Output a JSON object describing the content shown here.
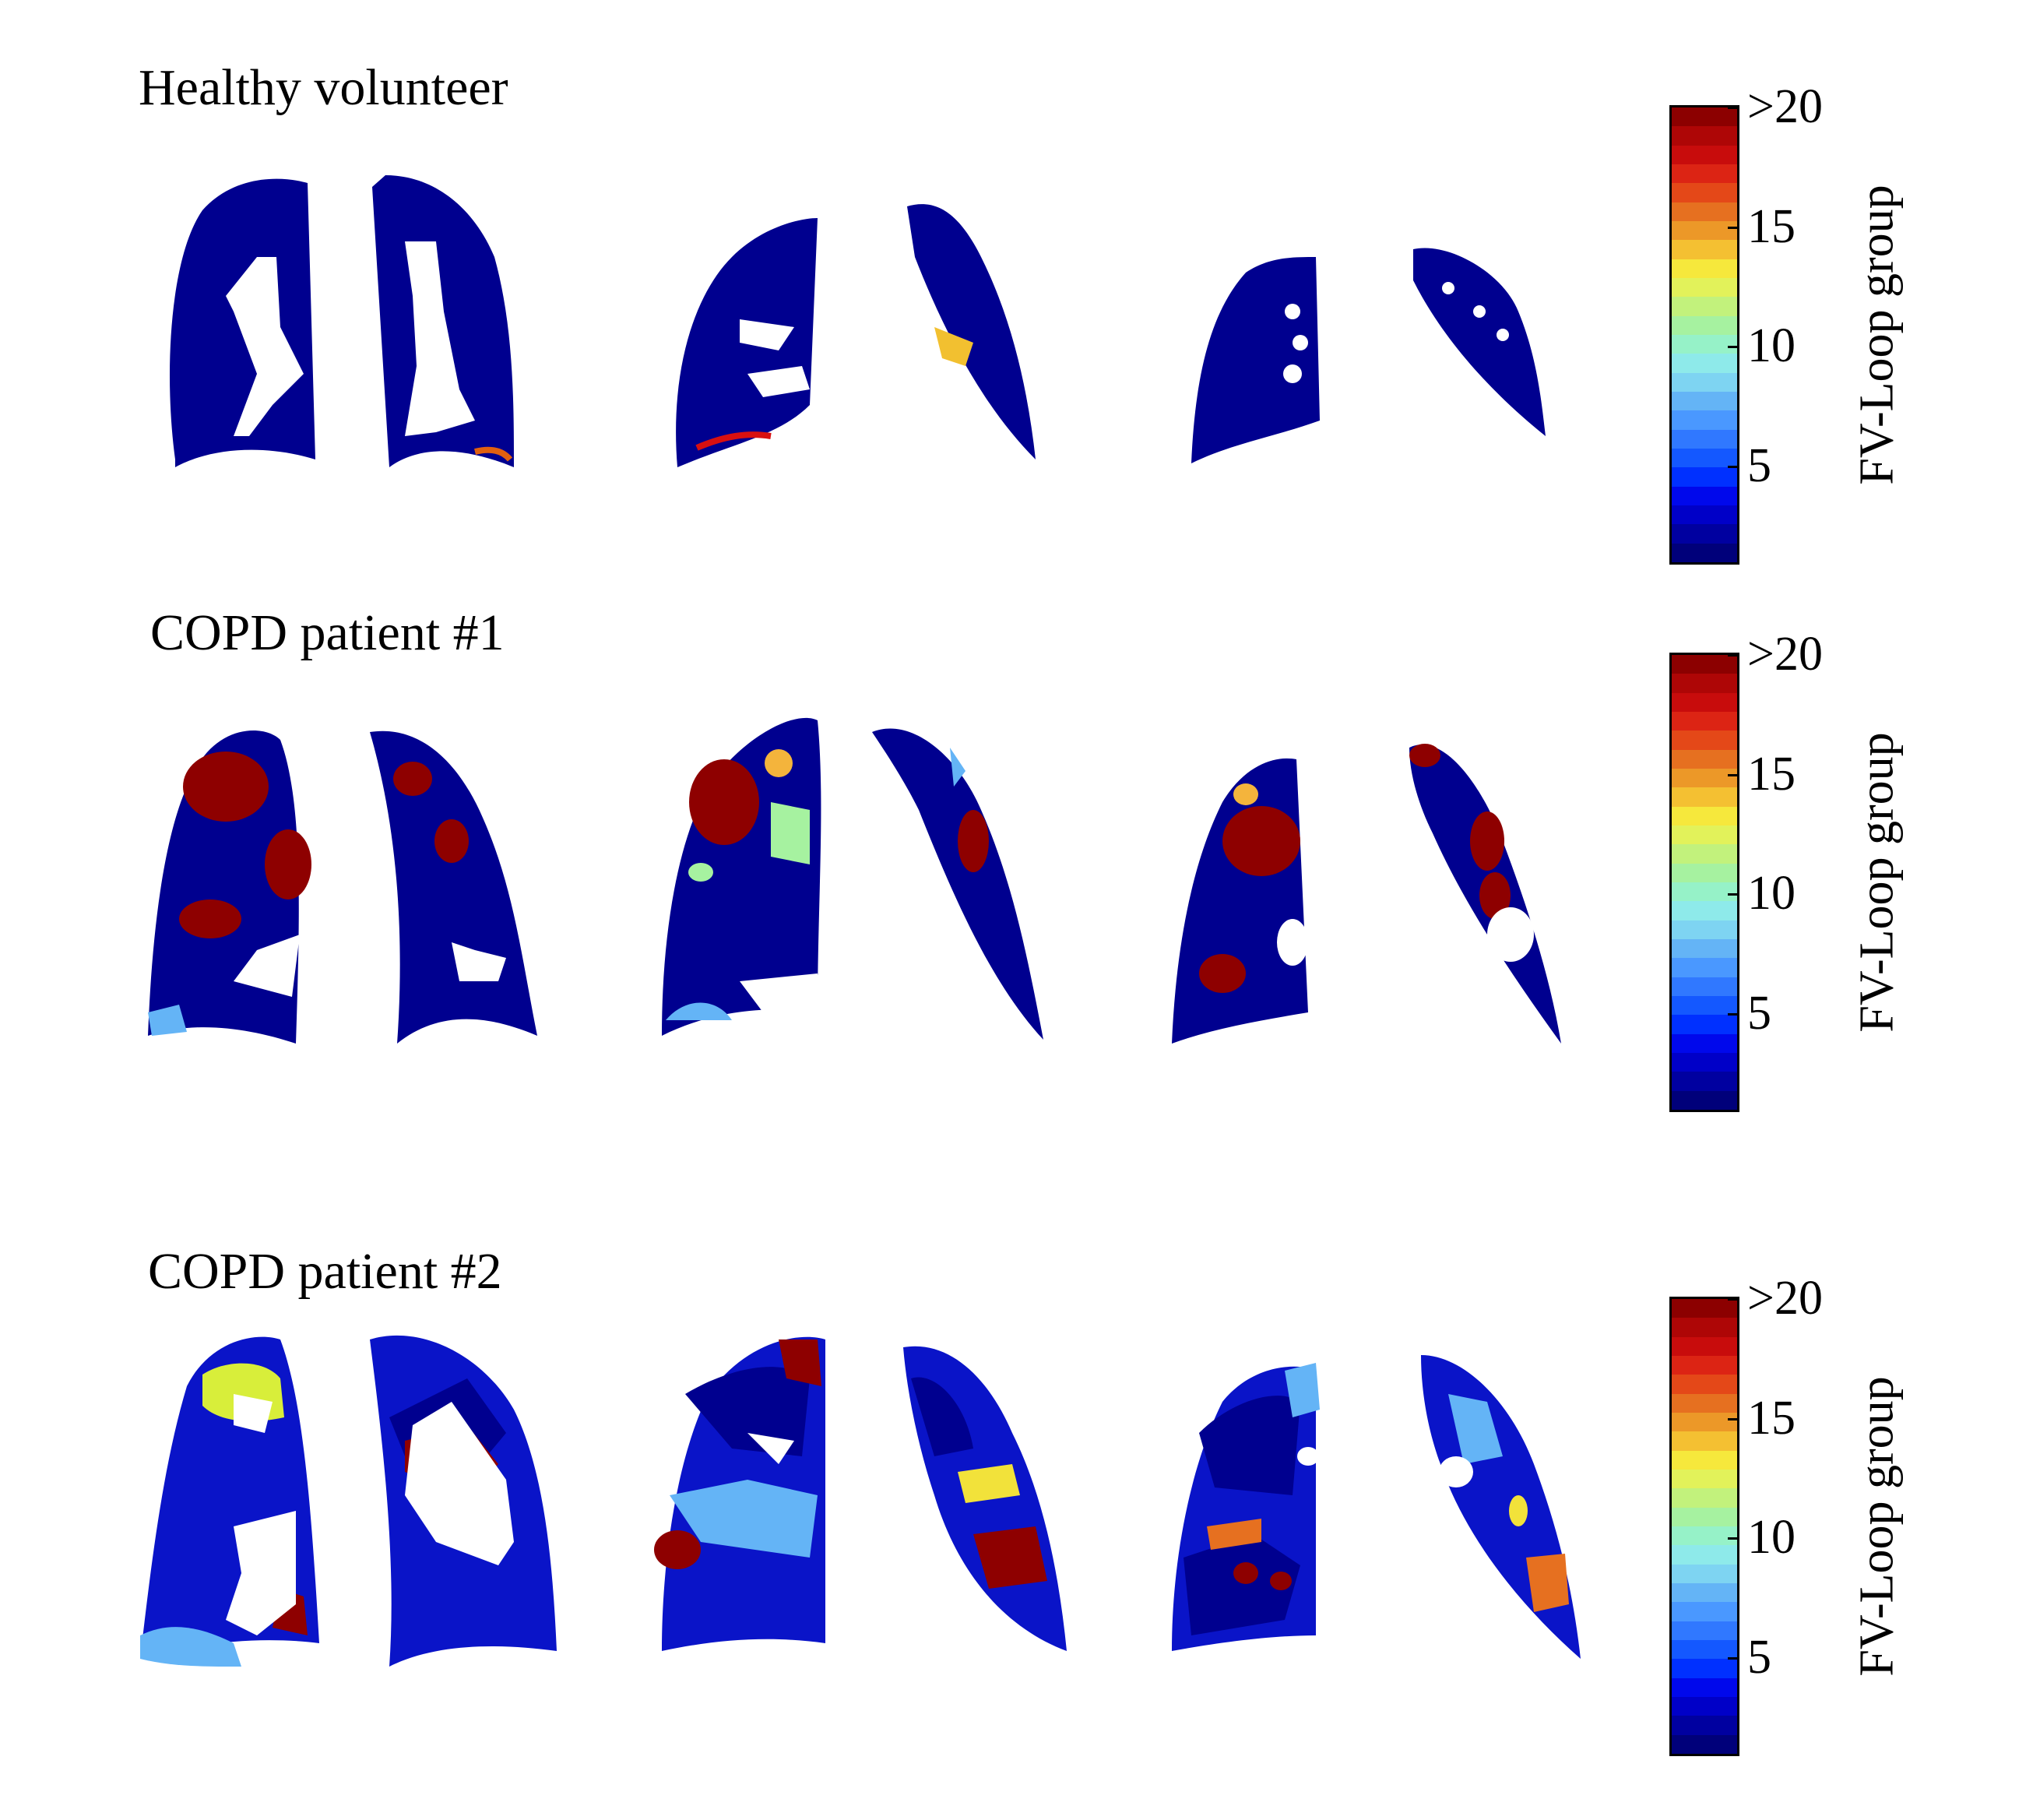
{
  "figure": {
    "panels": [
      {
        "title": "Healthy volunteer"
      },
      {
        "title": "COPD patient #1"
      },
      {
        "title": "COPD patient #2"
      }
    ],
    "colorbar": {
      "label": "FV-Loop group",
      "ticks": [
        ">20",
        "15",
        "10",
        "5"
      ],
      "tick_values": [
        20,
        15,
        10,
        5
      ],
      "range": [
        1,
        20
      ],
      "colors": [
        "#00007a",
        "#0000a0",
        "#0000c8",
        "#0008ec",
        "#0030ff",
        "#1458ff",
        "#3078ff",
        "#4a98ff",
        "#64b4f6",
        "#7ed4f2",
        "#8eeaea",
        "#96f2c8",
        "#a6f2a0",
        "#c2f27c",
        "#e2f25a",
        "#f6e83c",
        "#f4c032",
        "#ec9828",
        "#e67020",
        "#e44818",
        "#dc2414",
        "#c80c0c",
        "#ae0606",
        "#8c0000"
      ]
    }
  }
}
